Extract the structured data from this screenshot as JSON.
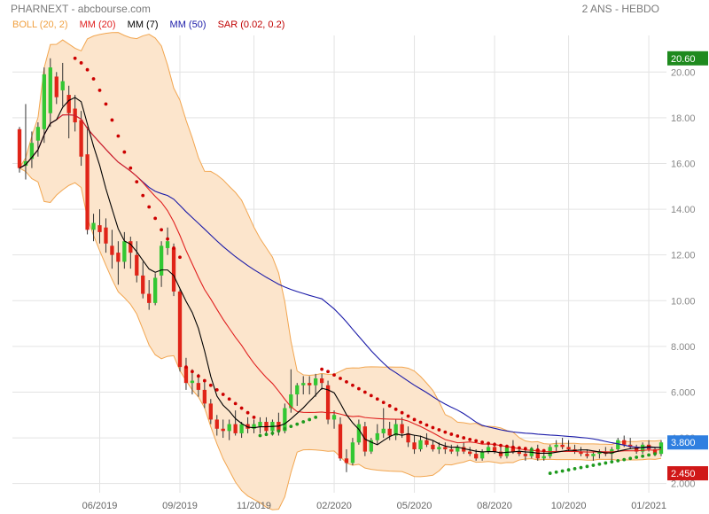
{
  "header": {
    "title": "PHARNEXT - abcbourse.com",
    "period": "2 ANS - HEBDO"
  },
  "legend": [
    {
      "label": "BOLL (20, 2)",
      "color": "#f0a040"
    },
    {
      "label": "MM (20)",
      "color": "#e02020"
    },
    {
      "label": "MM (7)",
      "color": "#000000"
    },
    {
      "label": "MM (50)",
      "color": "#1a1aa8"
    },
    {
      "label": "SAR (0.02, 0.2)",
      "color": "#c00000"
    }
  ],
  "colors": {
    "up": "#33c733",
    "down": "#e02418",
    "boll_fill": "#fce5cc",
    "boll_line": "#f2a650",
    "ma20": "#e02020",
    "ma7": "#000000",
    "ma50": "#1a1aa8",
    "sar_down": "#cc0000",
    "sar_up": "#1e9a1e",
    "badge_high": "#1e8a1e",
    "badge_last": "#2f7fe0",
    "badge_low": "#d01818"
  },
  "chart_data": {
    "type": "candlestick",
    "ylim": [
      1.6,
      21.6
    ],
    "yticks": [
      "2.000",
      "4.000",
      "6.000",
      "8.000",
      "10.00",
      "12.00",
      "14.00",
      "16.00",
      "18.00",
      "20.00"
    ],
    "ytick_values": [
      2,
      4,
      6,
      8,
      10,
      12,
      14,
      16,
      18,
      20
    ],
    "xlabels": [
      "06/2019",
      "09/2019",
      "11/2019",
      "02/2020",
      "05/2020",
      "08/2020",
      "10/2020",
      "01/2021"
    ],
    "xlabel_index": [
      13,
      26,
      38,
      51,
      64,
      77,
      89,
      102
    ],
    "badges": {
      "high": "20.60",
      "last": "3.800",
      "low": "2.450"
    },
    "badge_values": [
      20.6,
      3.8,
      2.45
    ],
    "candles": [
      [
        17.5,
        17.6,
        15.6,
        15.8
      ],
      [
        15.9,
        18.6,
        15.3,
        16.1
      ],
      [
        16.2,
        17.4,
        15.8,
        16.9
      ],
      [
        17.0,
        17.8,
        16.3,
        17.6
      ],
      [
        17.5,
        20.2,
        16.9,
        19.9
      ],
      [
        18.2,
        20.6,
        17.6,
        20.2
      ],
      [
        19.8,
        20.0,
        18.6,
        18.9
      ],
      [
        19.2,
        20.4,
        18.5,
        19.6
      ],
      [
        19.0,
        19.4,
        17.1,
        18.2
      ],
      [
        18.4,
        19.0,
        17.4,
        17.8
      ],
      [
        17.9,
        18.3,
        15.9,
        16.3
      ],
      [
        16.4,
        17.6,
        12.9,
        13.1
      ],
      [
        13.1,
        13.8,
        12.6,
        13.4
      ],
      [
        13.3,
        14.0,
        12.5,
        13.0
      ],
      [
        13.2,
        13.6,
        12.1,
        12.5
      ],
      [
        12.4,
        13.1,
        11.4,
        12.0
      ],
      [
        12.1,
        12.6,
        10.7,
        11.7
      ],
      [
        11.7,
        13.0,
        11.4,
        12.6
      ],
      [
        12.6,
        12.8,
        11.4,
        12.1
      ],
      [
        12.0,
        12.6,
        10.8,
        11.1
      ],
      [
        11.1,
        11.7,
        10.1,
        10.3
      ],
      [
        10.3,
        10.9,
        9.6,
        9.9
      ],
      [
        9.9,
        11.2,
        9.8,
        11.0
      ],
      [
        11.1,
        12.6,
        10.6,
        12.4
      ],
      [
        12.3,
        13.2,
        12.0,
        12.6
      ],
      [
        12.3,
        12.5,
        10.2,
        10.4
      ],
      [
        10.4,
        10.5,
        6.9,
        7.1
      ],
      [
        7.1,
        7.5,
        6.1,
        6.4
      ],
      [
        6.4,
        7.0,
        5.9,
        6.5
      ],
      [
        6.4,
        6.8,
        5.8,
        6.1
      ],
      [
        6.1,
        6.5,
        5.3,
        5.5
      ],
      [
        5.5,
        5.7,
        4.6,
        4.8
      ],
      [
        4.8,
        5.0,
        4.1,
        4.4
      ],
      [
        4.4,
        4.8,
        4.0,
        4.3
      ],
      [
        4.3,
        4.8,
        3.9,
        4.6
      ],
      [
        4.6,
        5.2,
        4.1,
        4.2
      ],
      [
        4.2,
        4.7,
        4.0,
        4.6
      ],
      [
        4.6,
        4.9,
        4.2,
        4.4
      ],
      [
        4.4,
        4.8,
        4.2,
        4.6
      ],
      [
        4.5,
        4.9,
        4.2,
        4.7
      ],
      [
        4.7,
        4.9,
        4.2,
        4.3
      ],
      [
        4.3,
        4.8,
        4.1,
        4.7
      ],
      [
        4.7,
        5.1,
        4.1,
        4.3
      ],
      [
        4.3,
        5.5,
        4.2,
        5.3
      ],
      [
        5.3,
        7.0,
        5.1,
        5.9
      ],
      [
        5.9,
        6.4,
        5.4,
        6.3
      ],
      [
        6.3,
        6.7,
        5.9,
        6.4
      ],
      [
        6.4,
        6.7,
        5.9,
        6.3
      ],
      [
        6.3,
        6.8,
        5.8,
        6.6
      ],
      [
        6.6,
        6.8,
        6.1,
        6.4
      ],
      [
        6.3,
        6.5,
        4.6,
        4.8
      ],
      [
        4.8,
        5.2,
        4.4,
        5.0
      ],
      [
        4.6,
        4.9,
        3.0,
        3.1
      ],
      [
        3.1,
        3.5,
        2.5,
        2.9
      ],
      [
        2.9,
        4.0,
        2.8,
        3.8
      ],
      [
        3.8,
        4.8,
        3.7,
        4.6
      ],
      [
        4.5,
        4.7,
        3.2,
        3.4
      ],
      [
        3.4,
        4.0,
        3.3,
        3.9
      ],
      [
        3.9,
        4.6,
        3.7,
        4.2
      ],
      [
        4.2,
        5.3,
        4.0,
        4.4
      ],
      [
        4.4,
        4.7,
        3.9,
        4.1
      ],
      [
        4.1,
        4.8,
        3.9,
        4.6
      ],
      [
        4.6,
        4.9,
        4.0,
        4.2
      ],
      [
        4.2,
        4.5,
        3.6,
        3.8
      ],
      [
        3.8,
        4.1,
        3.3,
        3.5
      ],
      [
        3.5,
        4.1,
        3.4,
        3.9
      ],
      [
        3.9,
        4.2,
        3.6,
        3.7
      ],
      [
        3.7,
        3.9,
        3.4,
        3.5
      ],
      [
        3.5,
        3.8,
        3.3,
        3.6
      ],
      [
        3.6,
        3.8,
        3.3,
        3.5
      ],
      [
        3.5,
        3.7,
        3.3,
        3.4
      ],
      [
        3.4,
        3.7,
        3.2,
        3.6
      ],
      [
        3.6,
        3.8,
        3.3,
        3.4
      ],
      [
        3.4,
        3.6,
        3.2,
        3.3
      ],
      [
        3.3,
        3.5,
        3.0,
        3.1
      ],
      [
        3.1,
        3.5,
        3.0,
        3.4
      ],
      [
        3.4,
        3.7,
        3.3,
        3.6
      ],
      [
        3.6,
        3.8,
        3.3,
        3.4
      ],
      [
        3.4,
        3.6,
        3.1,
        3.2
      ],
      [
        3.2,
        3.7,
        3.1,
        3.6
      ],
      [
        3.6,
        3.9,
        3.3,
        3.4
      ],
      [
        3.4,
        3.6,
        3.2,
        3.3
      ],
      [
        3.3,
        3.6,
        3.0,
        3.2
      ],
      [
        3.2,
        3.6,
        3.1,
        3.5
      ],
      [
        3.5,
        3.7,
        3.0,
        3.1
      ],
      [
        3.1,
        3.4,
        3.0,
        3.2
      ],
      [
        3.2,
        3.7,
        3.1,
        3.6
      ],
      [
        3.6,
        3.9,
        3.4,
        3.7
      ],
      [
        3.7,
        4.0,
        3.5,
        3.6
      ],
      [
        3.6,
        3.9,
        3.4,
        3.5
      ],
      [
        3.5,
        3.7,
        3.3,
        3.4
      ],
      [
        3.4,
        3.6,
        3.2,
        3.3
      ],
      [
        3.3,
        3.5,
        3.1,
        3.2
      ],
      [
        3.2,
        3.4,
        3.0,
        3.3
      ],
      [
        3.3,
        3.5,
        3.1,
        3.4
      ],
      [
        3.4,
        3.6,
        3.2,
        3.3
      ],
      [
        3.3,
        3.6,
        3.0,
        3.5
      ],
      [
        3.5,
        4.0,
        3.4,
        3.9
      ],
      [
        3.9,
        4.1,
        3.6,
        3.7
      ],
      [
        3.7,
        4.0,
        3.5,
        3.6
      ],
      [
        3.6,
        3.7,
        3.3,
        3.4
      ],
      [
        3.4,
        3.8,
        3.3,
        3.7
      ],
      [
        3.7,
        3.9,
        3.4,
        3.5
      ],
      [
        3.5,
        3.6,
        3.2,
        3.3
      ],
      [
        3.3,
        3.9,
        3.2,
        3.8
      ]
    ],
    "sar_start": 9,
    "sar": [
      20.6,
      20.4,
      20.1,
      19.7,
      19.2,
      18.6,
      17.9,
      17.2,
      16.5,
      15.8,
      15.2,
      14.6,
      14.1,
      13.6,
      13.1,
      12.7,
      12.3,
      11.9,
      7.1,
      6.9,
      6.7,
      6.5,
      6.3,
      6.1,
      5.9,
      5.7,
      5.5,
      5.3,
      5.1,
      4.9,
      4.1,
      4.15,
      4.2,
      4.3,
      4.4,
      4.5,
      4.6,
      4.7,
      4.8,
      4.9,
      7.0,
      6.9,
      6.75,
      6.6,
      6.45,
      6.3,
      6.15,
      6.0,
      5.85,
      5.7,
      5.55,
      5.4,
      5.25,
      5.1,
      4.95,
      4.8,
      4.68,
      4.56,
      4.45,
      4.35,
      4.25,
      4.16,
      4.08,
      4.0,
      3.93,
      3.87,
      3.81,
      3.76,
      3.71,
      3.67,
      3.63,
      3.59,
      3.56,
      3.53,
      3.5,
      3.47,
      3.44,
      2.45,
      2.5,
      2.55,
      2.6,
      2.65,
      2.7,
      2.75,
      2.8,
      2.85,
      2.9,
      2.95,
      3.0,
      3.05,
      3.1,
      3.15,
      3.2,
      3.25,
      3.3
    ]
  }
}
